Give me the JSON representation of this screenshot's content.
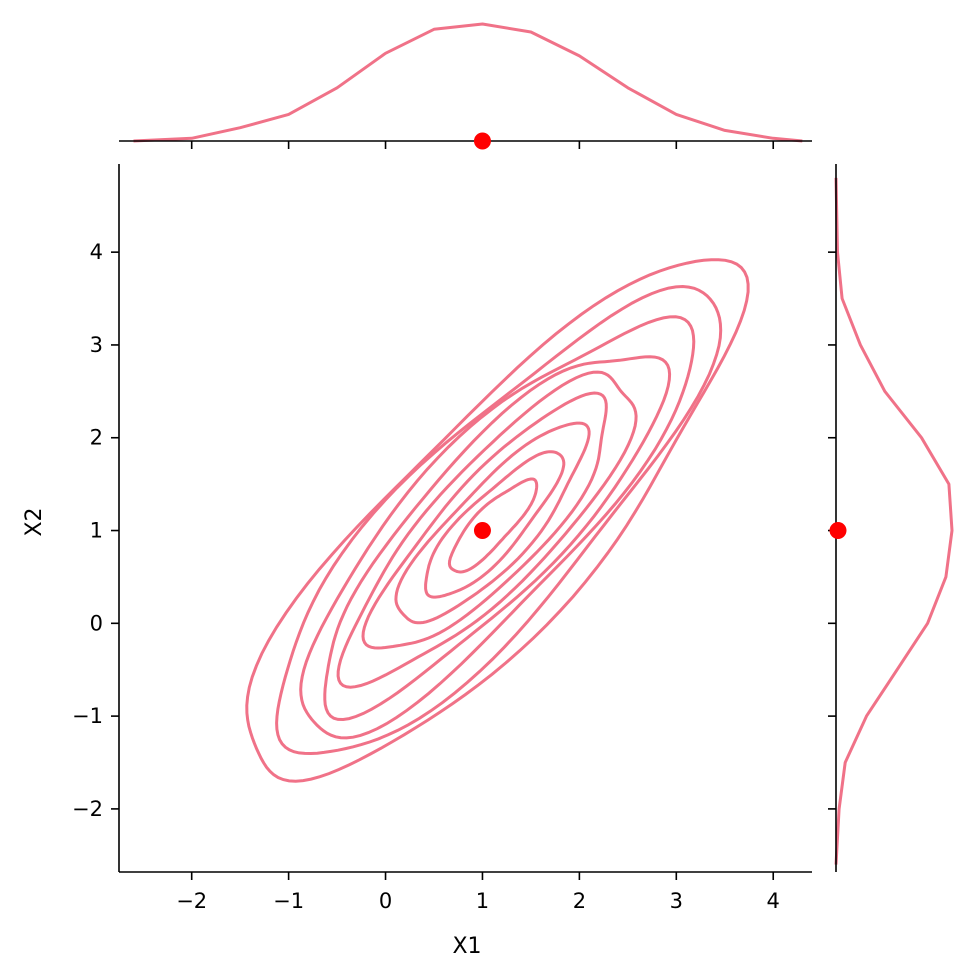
{
  "chart_data": {
    "type": "joint-kde-contour",
    "title": "",
    "xlabel": "X1",
    "ylabel": "X2",
    "xlim": [
      -2.75,
      4.4
    ],
    "ylim": [
      -2.68,
      4.95
    ],
    "grid": false,
    "legend": "none",
    "x_ticks": [
      -2,
      -1,
      0,
      1,
      2,
      3,
      4
    ],
    "x_tick_labels": [
      "−2",
      "−1",
      "0",
      "1",
      "2",
      "3",
      "4"
    ],
    "y_ticks": [
      -2,
      -1,
      0,
      1,
      2,
      3,
      4
    ],
    "y_tick_labels": [
      "−2",
      "−1",
      "0",
      "1",
      "2",
      "3",
      "4"
    ],
    "colors": {
      "kde": "#f07288",
      "marker": "#ff0000"
    },
    "kde": {
      "mean": [
        1.1,
        1.05
      ],
      "std": [
        1.0,
        1.1
      ],
      "correlation": 0.84,
      "contour_levels": 9
    },
    "highlight_point": {
      "x": 1,
      "y": 1
    },
    "marginal_x": {
      "x": [
        -2.6,
        -2.0,
        -1.5,
        -1.0,
        -0.5,
        0.0,
        0.5,
        1.0,
        1.5,
        2.0,
        2.5,
        3.0,
        3.5,
        4.0,
        4.3
      ],
      "density": [
        0.0,
        0.01,
        0.05,
        0.1,
        0.2,
        0.33,
        0.42,
        0.44,
        0.41,
        0.32,
        0.2,
        0.1,
        0.04,
        0.01,
        0.0
      ]
    },
    "marginal_y": {
      "y": [
        -2.6,
        -2.0,
        -1.5,
        -1.0,
        -0.5,
        0.0,
        0.5,
        1.0,
        1.5,
        2.0,
        2.5,
        3.0,
        3.5,
        4.0,
        4.8
      ],
      "density": [
        0.0,
        0.01,
        0.03,
        0.1,
        0.2,
        0.3,
        0.36,
        0.38,
        0.37,
        0.28,
        0.16,
        0.08,
        0.02,
        0.005,
        0.0
      ]
    }
  }
}
